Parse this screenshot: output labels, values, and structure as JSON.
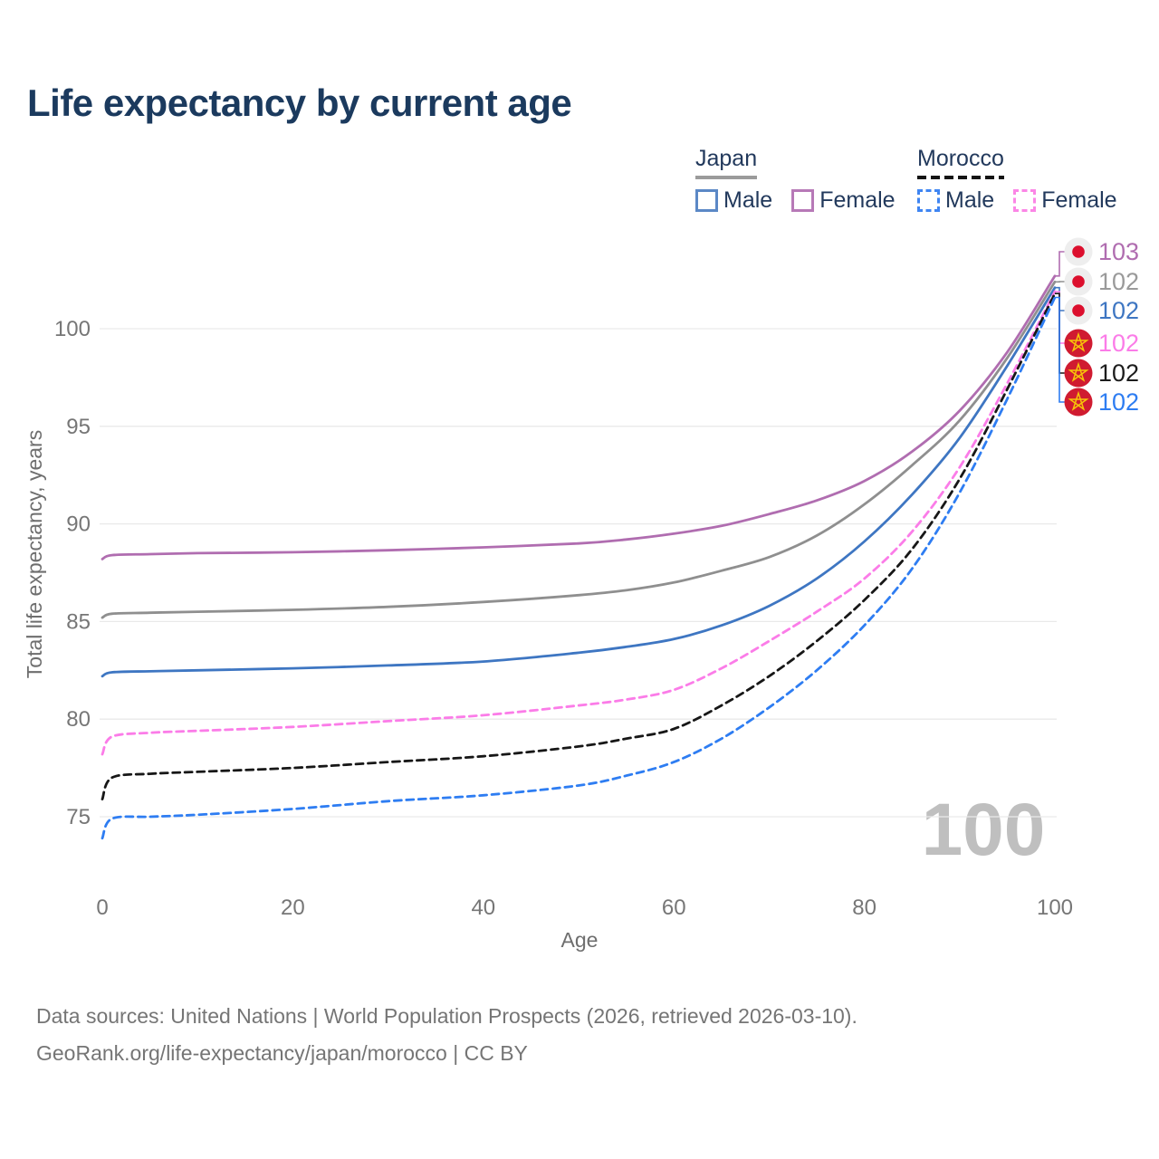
{
  "title": "Life expectancy by current age",
  "legend": {
    "groups": [
      {
        "country": "Japan",
        "line_style": "solid",
        "underline_color": "#9b9b9b",
        "items": [
          {
            "label": "Male",
            "color": "#3e76c2",
            "dashed": false
          },
          {
            "label": "Female",
            "color": "#b06db0",
            "dashed": false
          }
        ]
      },
      {
        "country": "Morocco",
        "line_style": "dashed",
        "underline_color": "#141414",
        "items": [
          {
            "label": "Male",
            "color": "#2e7df2",
            "dashed": true
          },
          {
            "label": "Female",
            "color": "#fb7ce8",
            "dashed": true
          }
        ]
      }
    ]
  },
  "watermark_age": "100",
  "footer": {
    "line1": "Data sources: United Nations | World Population Prospects (2026, retrieved 2026-03-10).",
    "line2": "GeoRank.org/life-expectancy/japan/morocco | CC BY"
  },
  "chart_data": {
    "type": "line",
    "title": "Life expectancy by current age",
    "xlabel": "Age",
    "ylabel": "Total life expectancy, years",
    "xlim": [
      0,
      100
    ],
    "ylim": [
      73,
      103.5
    ],
    "x_ticks": [
      0,
      20,
      40,
      60,
      80,
      100
    ],
    "y_ticks": [
      75,
      80,
      85,
      90,
      95,
      100
    ],
    "grid": "horizontal-only",
    "legend_position": "top-right",
    "x": [
      0,
      1,
      5,
      10,
      20,
      30,
      40,
      50,
      55,
      60,
      65,
      70,
      75,
      80,
      85,
      90,
      95,
      100
    ],
    "series": [
      {
        "name": "Japan Female",
        "country": "Japan",
        "sex": "Female",
        "color": "#b06db0",
        "dashed": false,
        "flag": "japan",
        "end_label": "103",
        "end_label_color": "#b06db0",
        "values": [
          88.2,
          88.4,
          88.45,
          88.5,
          88.55,
          88.65,
          88.8,
          89.0,
          89.2,
          89.5,
          89.9,
          90.5,
          91.2,
          92.2,
          93.7,
          95.8,
          98.8,
          102.7
        ]
      },
      {
        "name": "Japan Both sexes",
        "country": "Japan",
        "sex": "Both",
        "color": "#8f8f8f",
        "dashed": false,
        "flag": "japan",
        "end_label": "102",
        "end_label_color": "#9a9a9a",
        "values": [
          85.2,
          85.4,
          85.45,
          85.5,
          85.6,
          85.75,
          86.0,
          86.35,
          86.6,
          87.0,
          87.6,
          88.3,
          89.4,
          91.0,
          93.0,
          95.3,
          98.5,
          102.4
        ]
      },
      {
        "name": "Japan Male",
        "country": "Japan",
        "sex": "Male",
        "color": "#3e76c2",
        "dashed": false,
        "flag": "japan",
        "end_label": "102",
        "end_label_color": "#3e76c2",
        "values": [
          82.2,
          82.4,
          82.45,
          82.5,
          82.6,
          82.75,
          82.95,
          83.4,
          83.7,
          84.1,
          84.8,
          85.8,
          87.2,
          89.1,
          91.5,
          94.4,
          98.1,
          102.1
        ]
      },
      {
        "name": "Morocco Female",
        "country": "Morocco",
        "sex": "Female",
        "color": "#fb7ce8",
        "dashed": true,
        "flag": "morocco",
        "end_label": "102",
        "end_label_color": "#fb7ce8",
        "values": [
          78.2,
          79.1,
          79.3,
          79.4,
          79.6,
          79.9,
          80.2,
          80.7,
          81.0,
          81.5,
          82.6,
          84.0,
          85.5,
          87.2,
          89.6,
          92.9,
          97.2,
          101.9
        ]
      },
      {
        "name": "Morocco Both sexes",
        "country": "Morocco",
        "sex": "Both",
        "color": "#171717",
        "dashed": true,
        "flag": "morocco",
        "end_label": "102",
        "end_label_color": "#1c1c1c",
        "values": [
          75.9,
          77.0,
          77.2,
          77.3,
          77.5,
          77.8,
          78.1,
          78.6,
          79.0,
          79.5,
          80.7,
          82.2,
          84.0,
          86.1,
          88.7,
          92.3,
          96.9,
          101.8
        ]
      },
      {
        "name": "Morocco Male",
        "country": "Morocco",
        "sex": "Male",
        "color": "#2e7df2",
        "dashed": true,
        "flag": "morocco",
        "end_label": "102",
        "end_label_color": "#2e7df2",
        "values": [
          73.9,
          74.9,
          75.0,
          75.1,
          75.4,
          75.8,
          76.1,
          76.6,
          77.1,
          77.8,
          79.0,
          80.6,
          82.5,
          84.8,
          87.7,
          91.6,
          96.4,
          101.6
        ]
      }
    ],
    "flag_colors": {
      "japan_bg": "#eeeeee",
      "japan_dot": "#dc0f2d",
      "morocco_bg": "#d01b30",
      "morocco_star": "#f7c608"
    }
  }
}
